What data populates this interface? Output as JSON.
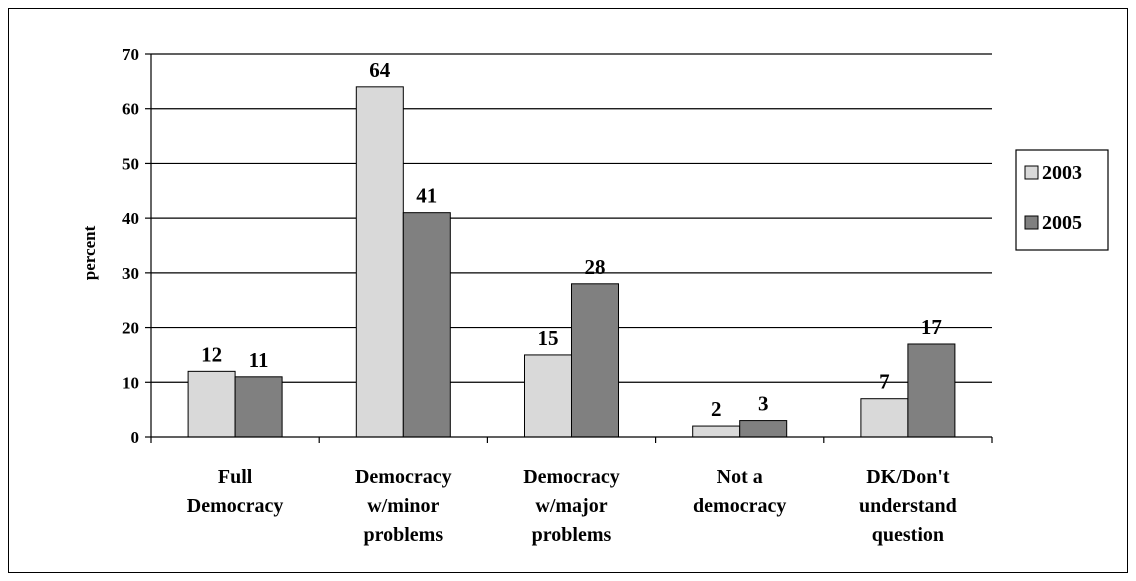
{
  "chart_data": {
    "type": "bar",
    "title": "",
    "xlabel": "",
    "ylabel": "percent",
    "ylim": [
      0,
      70
    ],
    "yticks": [
      0,
      10,
      20,
      30,
      40,
      50,
      60,
      70
    ],
    "grid": true,
    "legend_position": "right",
    "categories": [
      [
        "Full",
        "Democracy"
      ],
      [
        "Democracy",
        "w/minor",
        "problems"
      ],
      [
        "Democracy",
        "w/major",
        "problems"
      ],
      [
        "Not a",
        "democracy"
      ],
      [
        "DK/Don't",
        "understand",
        "question"
      ]
    ],
    "series": [
      {
        "name": "2003",
        "color": "#d9d9d9",
        "values": [
          12,
          64,
          15,
          2,
          7
        ]
      },
      {
        "name": "2005",
        "color": "#808080",
        "values": [
          11,
          41,
          28,
          3,
          17
        ]
      }
    ]
  }
}
